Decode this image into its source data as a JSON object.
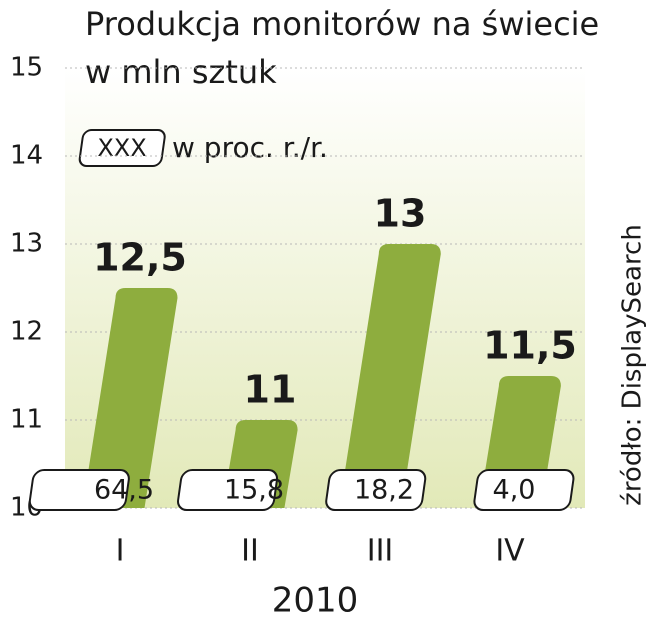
{
  "chart_data": {
    "type": "bar",
    "title": "Produkcja monitorów na świecie",
    "subtitle": "w mln sztuk",
    "categories": [
      "I",
      "II",
      "III",
      "IV"
    ],
    "values": [
      12.5,
      11,
      13,
      11.5
    ],
    "value_labels": [
      "12,5",
      "11",
      "13",
      "11,5"
    ],
    "color": "#8ead3e",
    "ylim": [
      10,
      15
    ],
    "yticks": [
      10,
      11,
      12,
      13,
      14,
      15
    ],
    "grid": true,
    "x_label": "2010",
    "change": {
      "key": "XXX",
      "label": "w proc. r./r.",
      "values": [
        64.5,
        15.8,
        18.2,
        4.0
      ],
      "value_labels": [
        "64,5",
        "15,8",
        "18,2",
        "4,0"
      ]
    },
    "source": "źródło: DisplaySearch"
  }
}
